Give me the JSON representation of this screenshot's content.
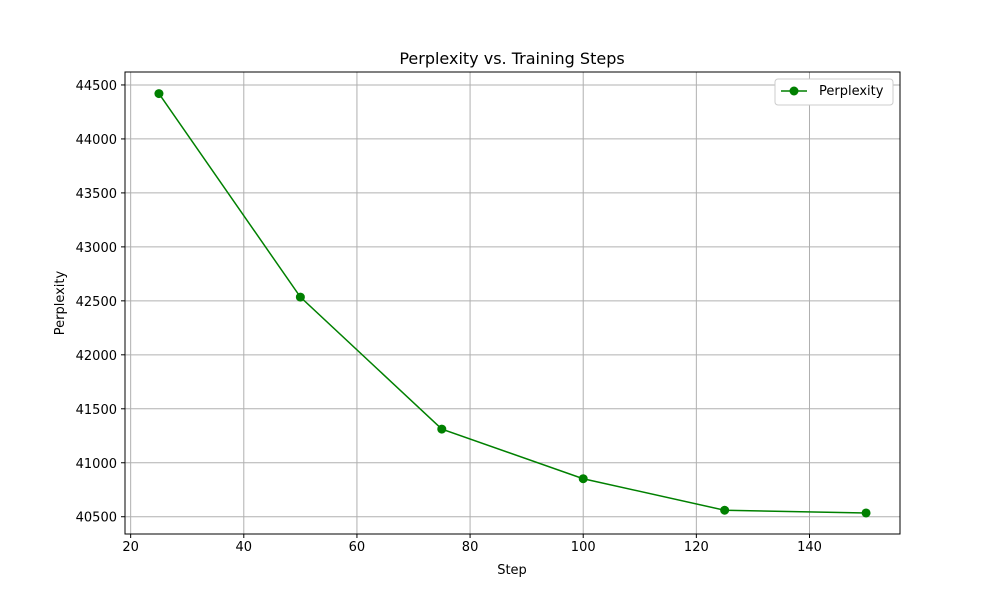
{
  "chart_data": {
    "type": "line",
    "title": "Perplexity vs. Training Steps",
    "xlabel": "Step",
    "ylabel": "Perplexity",
    "x": [
      25,
      50,
      75,
      100,
      125,
      150
    ],
    "series": [
      {
        "name": "Perplexity",
        "values": [
          44420,
          42535,
          41312,
          40852,
          40560,
          40535
        ],
        "color": "#008000",
        "marker": "circle"
      }
    ],
    "xlim": [
      19,
      156
    ],
    "ylim": [
      40340,
      44620
    ],
    "xticks": [
      20,
      40,
      60,
      80,
      100,
      120,
      140
    ],
    "yticks": [
      40500,
      41000,
      41500,
      42000,
      42500,
      43000,
      43500,
      44000,
      44500
    ],
    "grid": true,
    "legend_position": "top-right"
  }
}
